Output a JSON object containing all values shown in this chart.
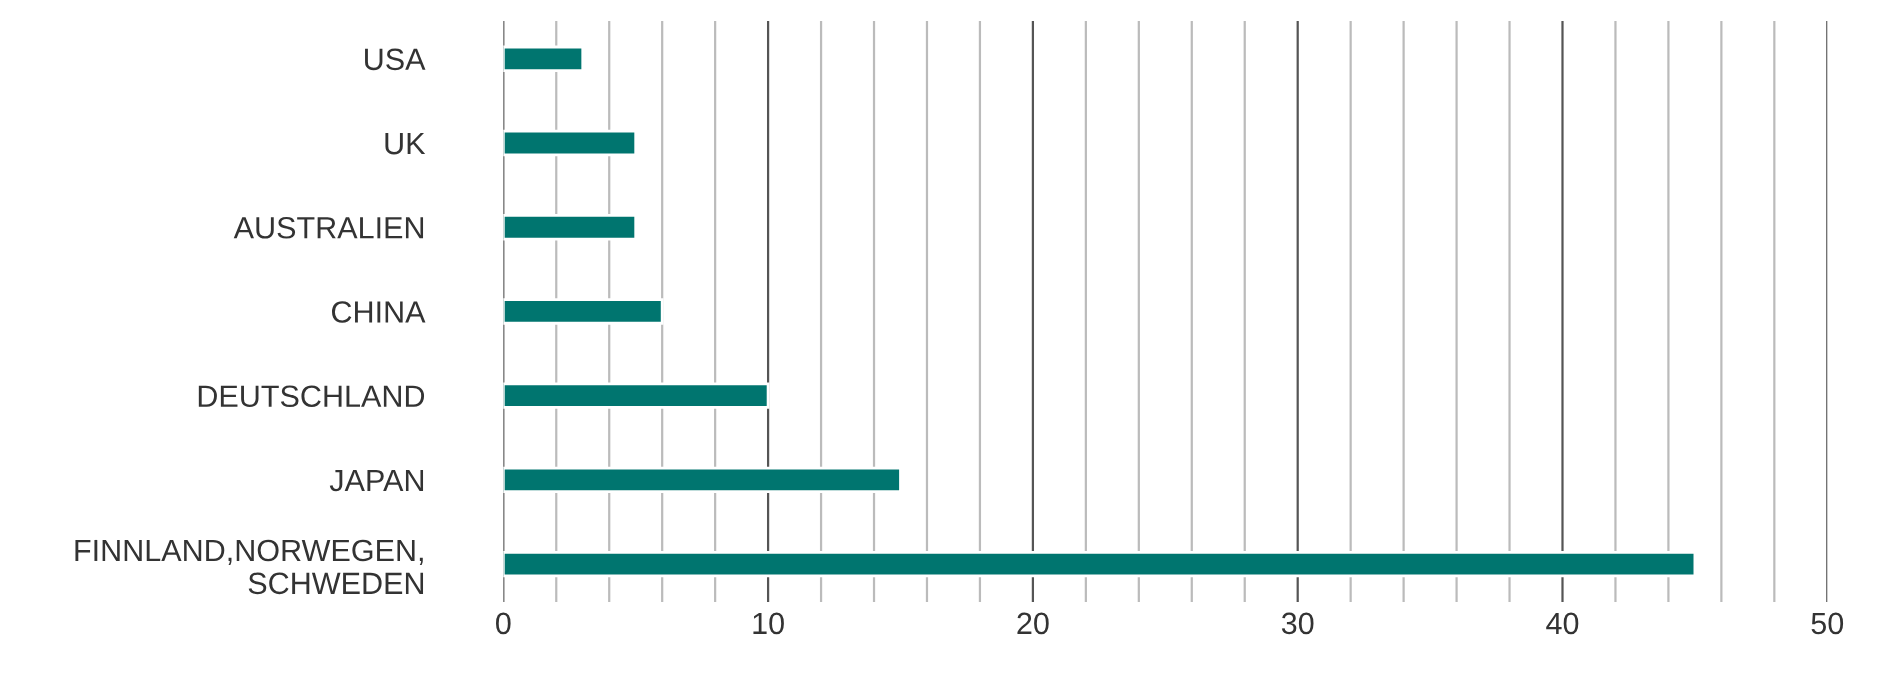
{
  "chart_data": {
    "type": "bar",
    "orientation": "horizontal",
    "categories": [
      "USA",
      "UK",
      "AUSTRALIEN",
      "CHINA",
      "DEUTSCHLAND",
      "JAPAN",
      "FINNLAND,NORWEGEN,\nSCHWEDEN"
    ],
    "values": [
      3,
      5,
      5,
      6,
      10,
      15,
      45
    ],
    "color": "#00756f",
    "xlim": [
      0,
      50
    ],
    "xticks": [
      0,
      {
        "value": 2,
        "label": null
      },
      {
        "value": 4,
        "label": null
      },
      {
        "value": 6,
        "label": null
      },
      {
        "value": 8,
        "label": null
      },
      10,
      {
        "value": 12,
        "label": null
      },
      {
        "value": 14,
        "label": null
      },
      {
        "value": 16,
        "label": null
      },
      {
        "value": 18,
        "label": null
      },
      20,
      {
        "value": 22,
        "label": null
      },
      {
        "value": 24,
        "label": null
      },
      {
        "value": 26,
        "label": null
      },
      {
        "value": 28,
        "label": null
      },
      30,
      {
        "value": 32,
        "label": null
      },
      {
        "value": 34,
        "label": null
      },
      {
        "value": 36,
        "label": null
      },
      {
        "value": 38,
        "label": null
      },
      40,
      {
        "value": 42,
        "label": null
      },
      {
        "value": 44,
        "label": null
      },
      {
        "value": 46,
        "label": null
      },
      {
        "value": 48,
        "label": null
      },
      50
    ],
    "grid": "x"
  }
}
